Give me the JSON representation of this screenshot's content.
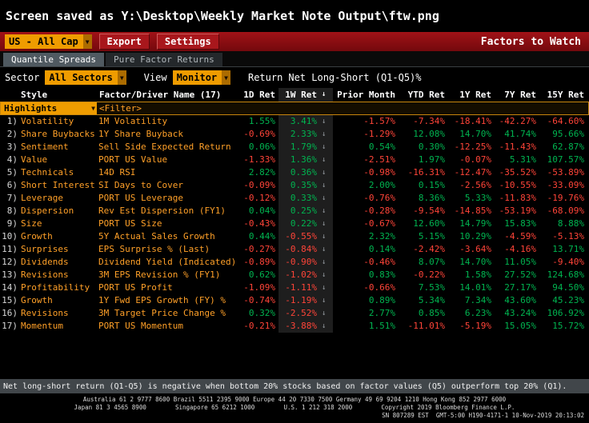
{
  "titlebar": {
    "text": "Screen saved as Y:\\Desktop\\Weekly Market Note Output\\ftw.png"
  },
  "menubar": {
    "universe": "US - All Cap",
    "export_label": "Export",
    "settings_label": "Settings",
    "screen_title": "Factors to Watch"
  },
  "tabs": [
    {
      "label": "Quantile Spreads"
    },
    {
      "label": "Pure Factor Returns"
    }
  ],
  "filters": {
    "sector_label": "Sector",
    "sector_value": "All Sectors",
    "view_label": "View",
    "view_value": "Monitor",
    "return_label": "Return",
    "return_value": "Net Long-Short (Q1-Q5)%"
  },
  "icons": {
    "caret": "▼",
    "sort_down": "↓",
    "row_trend_down": "↓"
  },
  "colors": {
    "amber": "#ffa028",
    "green": "#00b450",
    "red": "#ff4438"
  },
  "table": {
    "headers": [
      "Style",
      "Factor/Driver Name (17)",
      "1D Ret",
      "1W Ret",
      "Prior Month",
      "YTD Ret",
      "1Y Ret",
      "7Y Ret",
      "15Y Ret"
    ],
    "filter_row": {
      "dropdown": "Highlights",
      "filter": "<Filter>"
    },
    "rows": [
      {
        "num": "1",
        "style": "Volatility",
        "factor": "1M Volatility",
        "values": [
          "1.55%",
          "3.41%",
          "-1.57%",
          "-7.34%",
          "-18.41%",
          "-42.27%",
          "-64.60%"
        ]
      },
      {
        "num": "2",
        "style": "Share Buybacks",
        "factor": "1Y Share Buyback",
        "values": [
          "-0.69%",
          "2.33%",
          "-1.29%",
          "12.08%",
          "14.70%",
          "41.74%",
          "95.66%"
        ]
      },
      {
        "num": "3",
        "style": "Sentiment",
        "factor": "Sell Side Expected Return",
        "values": [
          "0.06%",
          "1.79%",
          "0.54%",
          "0.30%",
          "-12.25%",
          "-11.43%",
          "62.87%"
        ]
      },
      {
        "num": "4",
        "style": "Value",
        "factor": "PORT US Value",
        "values": [
          "-1.33%",
          "1.36%",
          "-2.51%",
          "1.97%",
          "-0.07%",
          "5.31%",
          "107.57%"
        ]
      },
      {
        "num": "5",
        "style": "Technicals",
        "factor": "14D RSI",
        "values": [
          "2.82%",
          "0.36%",
          "-0.98%",
          "-16.31%",
          "-12.47%",
          "-35.52%",
          "-53.89%"
        ]
      },
      {
        "num": "6",
        "style": "Short Interest",
        "factor": "SI Days to Cover",
        "values": [
          "-0.09%",
          "0.35%",
          "2.00%",
          "0.15%",
          "-2.56%",
          "-10.55%",
          "-33.09%"
        ]
      },
      {
        "num": "7",
        "style": "Leverage",
        "factor": "PORT US Leverage",
        "values": [
          "-0.12%",
          "0.33%",
          "-0.76%",
          "8.36%",
          "5.33%",
          "-11.83%",
          "-19.76%"
        ]
      },
      {
        "num": "8",
        "style": "Dispersion",
        "factor": "Rev Est Dispersion (FY1)",
        "values": [
          "0.04%",
          "0.25%",
          "-0.28%",
          "-9.54%",
          "-14.85%",
          "-53.19%",
          "-68.09%"
        ]
      },
      {
        "num": "9",
        "style": "Size",
        "factor": "PORT US Size",
        "values": [
          "-0.43%",
          "0.22%",
          "-0.67%",
          "12.60%",
          "14.79%",
          "15.83%",
          "8.88%"
        ]
      },
      {
        "num": "10",
        "style": "Growth",
        "factor": "5Y Actual Sales Growth",
        "values": [
          "0.44%",
          "-0.55%",
          "2.32%",
          "5.15%",
          "10.29%",
          "-4.59%",
          "-5.13%"
        ]
      },
      {
        "num": "11",
        "style": "Surprises",
        "factor": "EPS Surprise % (Last)",
        "values": [
          "-0.27%",
          "-0.84%",
          "0.14%",
          "-2.42%",
          "-3.64%",
          "-4.16%",
          "13.71%"
        ]
      },
      {
        "num": "12",
        "style": "Dividends",
        "factor": "Dividend Yield (Indicated)",
        "values": [
          "-0.89%",
          "-0.90%",
          "-0.46%",
          "8.07%",
          "14.70%",
          "11.05%",
          "-9.40%"
        ]
      },
      {
        "num": "13",
        "style": "Revisions",
        "factor": "3M EPS Revision % (FY1)",
        "values": [
          "0.62%",
          "-1.02%",
          "0.83%",
          "-0.22%",
          "1.58%",
          "27.52%",
          "124.68%"
        ]
      },
      {
        "num": "14",
        "style": "Profitability",
        "factor": "PORT US Profit",
        "values": [
          "-1.09%",
          "-1.11%",
          "-0.66%",
          "7.53%",
          "14.01%",
          "27.17%",
          "94.50%"
        ]
      },
      {
        "num": "15",
        "style": "Growth",
        "factor": "1Y Fwd EPS Growth (FY) %",
        "values": [
          "-0.74%",
          "-1.19%",
          "0.89%",
          "5.34%",
          "7.34%",
          "43.60%",
          "45.23%"
        ]
      },
      {
        "num": "16",
        "style": "Revisions",
        "factor": "3M Target Price Change %",
        "values": [
          "0.32%",
          "-2.52%",
          "2.77%",
          "0.85%",
          "6.23%",
          "43.24%",
          "106.92%"
        ]
      },
      {
        "num": "17",
        "style": "Momentum",
        "factor": "PORT US Momentum",
        "values": [
          "-0.21%",
          "-3.88%",
          "1.51%",
          "-11.01%",
          "-5.19%",
          "15.05%",
          "15.72%"
        ]
      }
    ]
  },
  "footnote": "Net long-short return (Q1-Q5) is negative when bottom 20% stocks based on factor values (Q5) outperform top 20% (Q1).",
  "footer": {
    "line1": "Australia 61 2 9777 8600 Brazil 5511 2395 9000 Europe 44 20 7330 7500 Germany 49 69 9204 1210 Hong Kong 852 2977 6000",
    "line2": "Japan 81 3 4565 8900        Singapore 65 6212 1000        U.S. 1 212 318 2000        Copyright 2019 Bloomberg Finance L.P.",
    "line3": "SN 807289 EST  GMT-5:00 H190-4171-1 10-Nov-2019 20:13:02"
  }
}
